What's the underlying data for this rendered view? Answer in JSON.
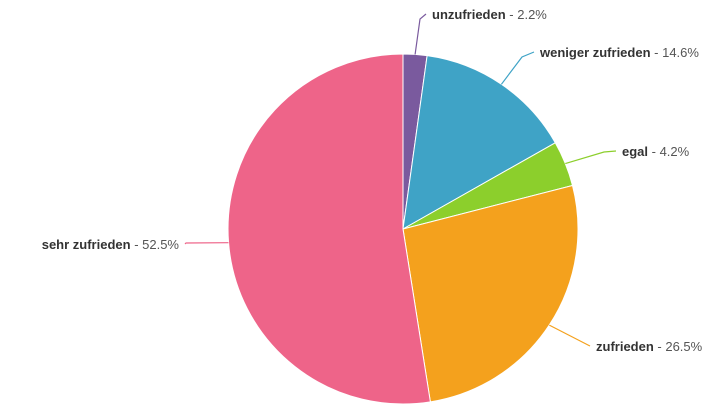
{
  "chart_data": {
    "type": "pie",
    "unit": "%",
    "slices": [
      {
        "label": "unzufrieden",
        "value": 2.2,
        "value_label": "2.2%",
        "color": "#7a5a9e"
      },
      {
        "label": "weniger zufrieden",
        "value": 14.6,
        "value_label": "14.6%",
        "color": "#3fa3c6"
      },
      {
        "label": "egal",
        "value": 4.2,
        "value_label": "4.2%",
        "color": "#8ccf2c"
      },
      {
        "label": "zufrieden",
        "value": 26.5,
        "value_label": "26.5%",
        "color": "#f4a11d"
      },
      {
        "label": "sehr zufrieden",
        "value": 52.5,
        "value_label": "52.5%",
        "color": "#ee6489"
      }
    ],
    "start": "top",
    "direction": "clockwise",
    "legend": "none"
  }
}
